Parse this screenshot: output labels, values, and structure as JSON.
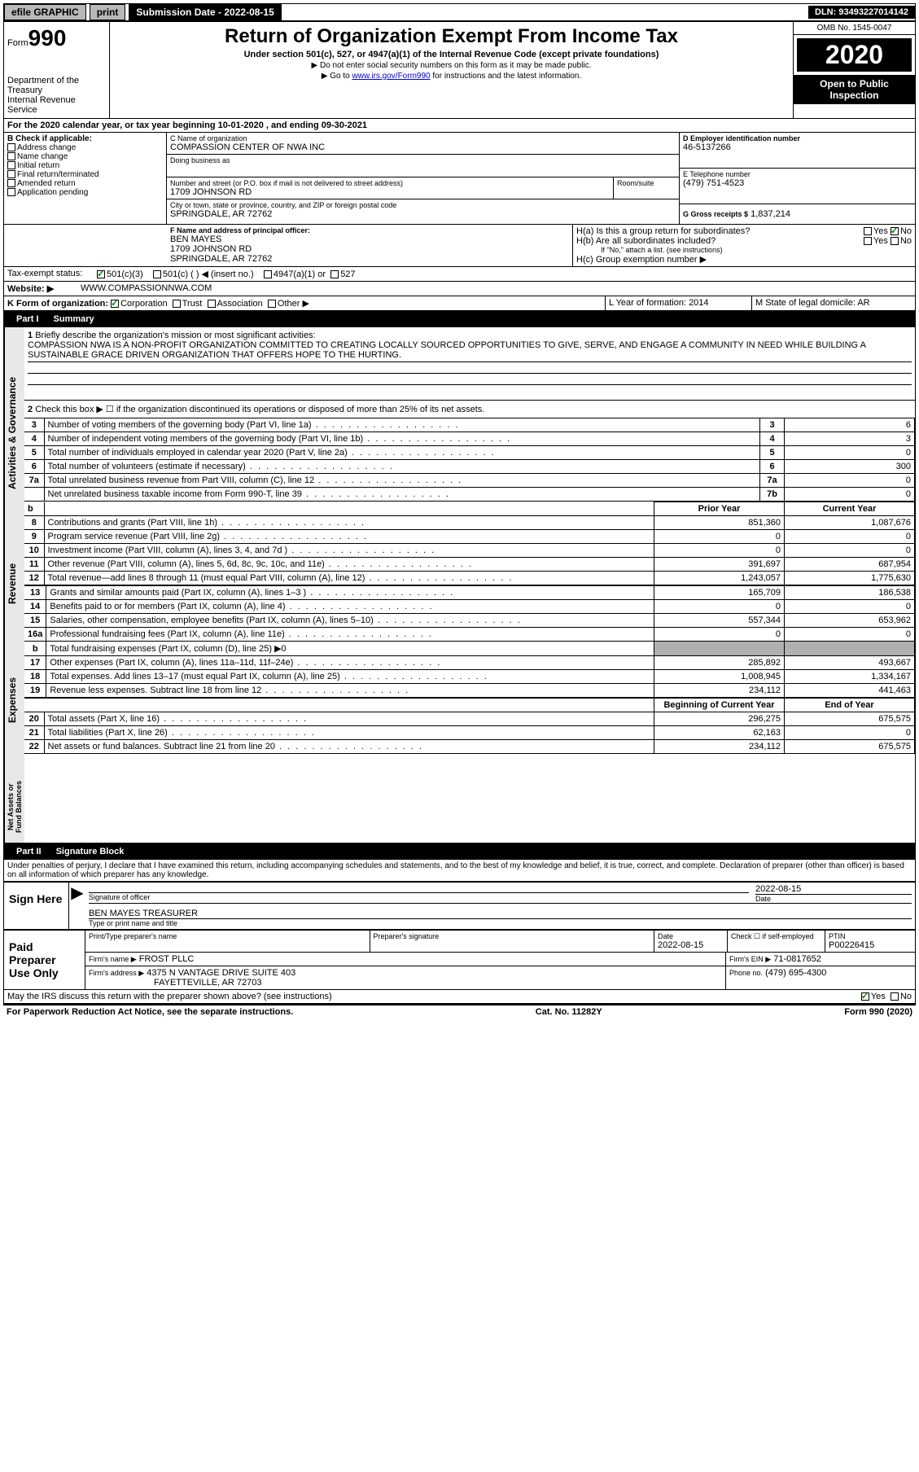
{
  "topbar": {
    "efile": "efile GRAPHIC",
    "print": "print",
    "subdate_label": "Submission Date - 2022-08-15",
    "dln": "DLN: 93493227014142"
  },
  "header": {
    "form_label": "Form",
    "form_no": "990",
    "dept": "Department of the Treasury\nInternal Revenue Service",
    "title": "Return of Organization Exempt From Income Tax",
    "sub": "Under section 501(c), 527, or 4947(a)(1) of the Internal Revenue Code (except private foundations)",
    "note1": "▶ Do not enter social security numbers on this form as it may be made public.",
    "note2_a": "▶ Go to ",
    "note2_link": "www.irs.gov/Form990",
    "note2_b": " for instructions and the latest information.",
    "omb": "OMB No. 1545-0047",
    "year": "2020",
    "open": "Open to Public Inspection"
  },
  "periodA": "For the 2020 calendar year, or tax year beginning 10-01-2020    , and ending 09-30-2021",
  "B": {
    "label": "Check if applicable:",
    "items": [
      "Address change",
      "Name change",
      "Initial return",
      "Final return/terminated",
      "Amended return",
      "Application pending"
    ]
  },
  "C": {
    "name_label": "C Name of organization",
    "name": "COMPASSION CENTER OF NWA INC",
    "dba_label": "Doing business as",
    "addr_label": "Number and street (or P.O. box if mail is not delivered to street address)",
    "room_label": "Room/suite",
    "addr": "1709 JOHNSON RD",
    "city_label": "City or town, state or province, country, and ZIP or foreign postal code",
    "city": "SPRINGDALE, AR  72762"
  },
  "D": {
    "label": "D Employer identification number",
    "val": "46-5137266"
  },
  "E": {
    "label": "E Telephone number",
    "val": "(479) 751-4523"
  },
  "G": {
    "label": "G Gross receipts $",
    "val": "1,837,214"
  },
  "F": {
    "label": "F  Name and address of principal officer:",
    "name": "BEN MAYES",
    "addr1": "1709 JOHNSON RD",
    "addr2": "SPRINGDALE, AR  72762"
  },
  "H": {
    "a": "H(a)  Is this a group return for subordinates?",
    "b": "H(b)  Are all subordinates included?",
    "b_note": "If \"No,\" attach a list. (see instructions)",
    "c": "H(c)  Group exemption number ▶",
    "yes": "Yes",
    "no": "No"
  },
  "I": {
    "label": "Tax-exempt status:",
    "opts": [
      "501(c)(3)",
      "501(c) (  ) ◀ (insert no.)",
      "4947(a)(1) or",
      "527"
    ]
  },
  "J": {
    "label": "Website: ▶",
    "val": "WWW.COMPASSIONNWA.COM"
  },
  "K": {
    "label": "K Form of organization:",
    "opts": [
      "Corporation",
      "Trust",
      "Association",
      "Other ▶"
    ]
  },
  "L": {
    "label": "L Year of formation:",
    "val": "2014"
  },
  "M": {
    "label": "M State of legal domicile:",
    "val": "AR"
  },
  "part1": {
    "box": "Part I",
    "title": "Summary"
  },
  "summary": {
    "l1_label": "Briefly describe the organization's mission or most significant activities:",
    "l1_text": "COMPASSION NWA IS A NON-PROFIT ORGANIZATION COMMITTED TO CREATING LOCALLY SOURCED OPPORTUNITIES TO GIVE, SERVE, AND ENGAGE A COMMUNITY IN NEED WHILE BUILDING A SUSTAINABLE GRACE DRIVEN ORGANIZATION THAT OFFERS HOPE TO THE HURTING.",
    "l2": "Check this box ▶ ☐ if the organization discontinued its operations or disposed of more than 25% of its net assets.",
    "sections": {
      "activities": "Activities & Governance",
      "revenue": "Revenue",
      "expenses": "Expenses",
      "net": "Net Assets or Fund Balances"
    },
    "rows_ag": [
      {
        "n": "3",
        "label": "Number of voting members of the governing body (Part VI, line 1a)",
        "box": "3",
        "val": "6"
      },
      {
        "n": "4",
        "label": "Number of independent voting members of the governing body (Part VI, line 1b)",
        "box": "4",
        "val": "3"
      },
      {
        "n": "5",
        "label": "Total number of individuals employed in calendar year 2020 (Part V, line 2a)",
        "box": "5",
        "val": "0"
      },
      {
        "n": "6",
        "label": "Total number of volunteers (estimate if necessary)",
        "box": "6",
        "val": "300"
      },
      {
        "n": "7a",
        "label": "Total unrelated business revenue from Part VIII, column (C), line 12",
        "box": "7a",
        "val": "0"
      },
      {
        "n": "",
        "label": "Net unrelated business taxable income from Form 990-T, line 39",
        "box": "7b",
        "val": "0"
      }
    ],
    "col_prior": "Prior Year",
    "col_current": "Current Year",
    "rows_rev": [
      {
        "n": "8",
        "label": "Contributions and grants (Part VIII, line 1h)",
        "p": "851,360",
        "c": "1,087,676"
      },
      {
        "n": "9",
        "label": "Program service revenue (Part VIII, line 2g)",
        "p": "0",
        "c": "0"
      },
      {
        "n": "10",
        "label": "Investment income (Part VIII, column (A), lines 3, 4, and 7d )",
        "p": "0",
        "c": "0"
      },
      {
        "n": "11",
        "label": "Other revenue (Part VIII, column (A), lines 5, 6d, 8c, 9c, 10c, and 11e)",
        "p": "391,697",
        "c": "687,954"
      },
      {
        "n": "12",
        "label": "Total revenue—add lines 8 through 11 (must equal Part VIII, column (A), line 12)",
        "p": "1,243,057",
        "c": "1,775,630"
      }
    ],
    "rows_exp": [
      {
        "n": "13",
        "label": "Grants and similar amounts paid (Part IX, column (A), lines 1–3 )",
        "p": "165,709",
        "c": "186,538"
      },
      {
        "n": "14",
        "label": "Benefits paid to or for members (Part IX, column (A), line 4)",
        "p": "0",
        "c": "0"
      },
      {
        "n": "15",
        "label": "Salaries, other compensation, employee benefits (Part IX, column (A), lines 5–10)",
        "p": "557,344",
        "c": "653,962"
      },
      {
        "n": "16a",
        "label": "Professional fundraising fees (Part IX, column (A), line 11e)",
        "p": "0",
        "c": "0"
      },
      {
        "n": "b",
        "label": "Total fundraising expenses (Part IX, column (D), line 25) ▶0",
        "p": "",
        "c": "",
        "shade": true
      },
      {
        "n": "17",
        "label": "Other expenses (Part IX, column (A), lines 11a–11d, 11f–24e)",
        "p": "285,892",
        "c": "493,667"
      },
      {
        "n": "18",
        "label": "Total expenses. Add lines 13–17 (must equal Part IX, column (A), line 25)",
        "p": "1,008,945",
        "c": "1,334,167"
      },
      {
        "n": "19",
        "label": "Revenue less expenses. Subtract line 18 from line 12",
        "p": "234,112",
        "c": "441,463"
      }
    ],
    "col_begin": "Beginning of Current Year",
    "col_end": "End of Year",
    "rows_net": [
      {
        "n": "20",
        "label": "Total assets (Part X, line 16)",
        "p": "296,275",
        "c": "675,575"
      },
      {
        "n": "21",
        "label": "Total liabilities (Part X, line 26)",
        "p": "62,163",
        "c": "0"
      },
      {
        "n": "22",
        "label": "Net assets or fund balances. Subtract line 21 from line 20",
        "p": "234,112",
        "c": "675,575"
      }
    ]
  },
  "part2": {
    "box": "Part II",
    "title": "Signature Block"
  },
  "sig": {
    "perjury": "Under penalties of perjury, I declare that I have examined this return, including accompanying schedules and statements, and to the best of my knowledge and belief, it is true, correct, and complete. Declaration of preparer (other than officer) is based on all information of which preparer has any knowledge.",
    "sign_here": "Sign Here",
    "sig_officer_label": "Signature of officer",
    "date_label": "Date",
    "date_val": "2022-08-15",
    "name_title": "BEN MAYES  TREASURER",
    "name_title_label": "Type or print name and title",
    "paid": "Paid Preparer Use Only",
    "prep_name_label": "Print/Type preparer's name",
    "prep_sig_label": "Preparer's signature",
    "prep_date": "2022-08-15",
    "check_self": "Check ☐ if self-employed",
    "ptin_label": "PTIN",
    "ptin": "P00226415",
    "firm_name_label": "Firm's name    ▶",
    "firm_name": "FROST PLLC",
    "firm_ein_label": "Firm's EIN ▶",
    "firm_ein": "71-0817652",
    "firm_addr_label": "Firm's address ▶",
    "firm_addr1": "4375 N VANTAGE DRIVE SUITE 403",
    "firm_addr2": "FAYETTEVILLE, AR  72703",
    "phone_label": "Phone no.",
    "phone": "(479) 695-4300",
    "discuss": "May the IRS discuss this return with the preparer shown above? (see instructions)"
  },
  "footer": {
    "left": "For Paperwork Reduction Act Notice, see the separate instructions.",
    "mid": "Cat. No. 11282Y",
    "right": "Form 990 (2020)"
  }
}
